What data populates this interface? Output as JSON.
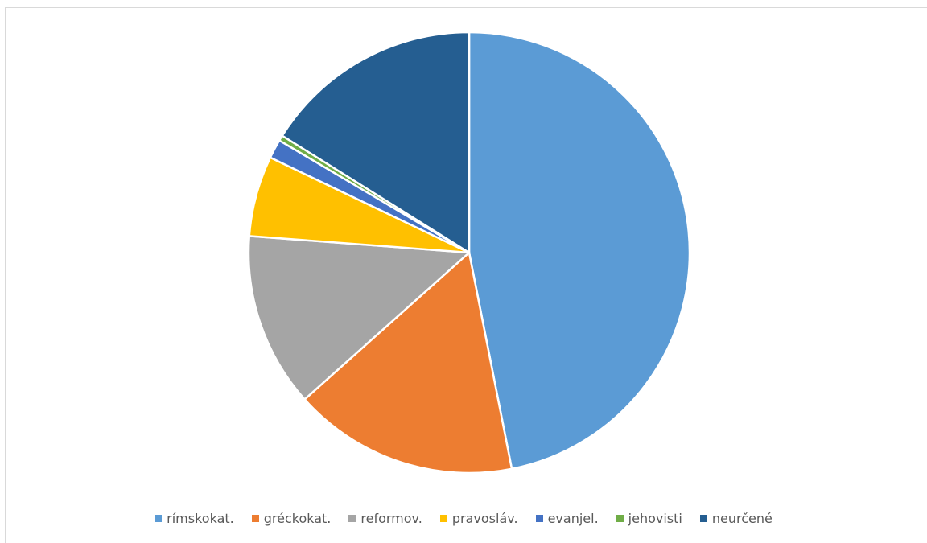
{
  "chart_data": {
    "type": "pie",
    "categories": [
      "rímskokat.",
      "gréckokat.",
      "reformov.",
      "pravosláv.",
      "evanjel.",
      "jehovisti",
      "neurčené"
    ],
    "values": [
      46.9,
      16.5,
      12.8,
      5.9,
      1.4,
      0.4,
      16.1
    ],
    "colors": [
      "#5b9bd5",
      "#ed7d31",
      "#a5a5a5",
      "#ffc000",
      "#4472c4",
      "#70ad47",
      "#255e91"
    ],
    "legend_position": "bottom",
    "start_angle": "12 o'clock, clockwise"
  }
}
